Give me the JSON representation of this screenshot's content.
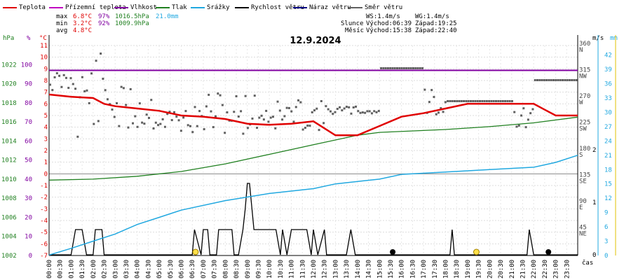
{
  "chart_data": {
    "type": "line",
    "title": "12.9.2024",
    "xlabel": "čas",
    "legend": [
      {
        "name": "Teplota",
        "color": "#e00000"
      },
      {
        "name": "Přízemní teplota",
        "color": "#c000c0"
      },
      {
        "name": "Vlhkost",
        "color": "#8000a0"
      },
      {
        "name": "Tlak",
        "color": "#208020"
      },
      {
        "name": "Srážky",
        "color": "#20a8e0"
      },
      {
        "name": "Rychlost větru",
        "color": "#000000"
      },
      {
        "name": "Náraz větru",
        "color": "#000080"
      },
      {
        "name": "Směr větru",
        "color": "#606060"
      }
    ],
    "stats": {
      "max": {
        "label": "max",
        "temp": "6.8°C",
        "hum": "97%",
        "press": "1016.5hPa",
        "rain": "21.0mm"
      },
      "min": {
        "label": "min",
        "temp": "3.2°C",
        "hum": "92%",
        "press": "1009.9hPa"
      },
      "avg": {
        "label": "avg",
        "temp": "4.8°C"
      }
    },
    "astro": {
      "ws": "WS:1.4m/s",
      "wg": "WG:1.4m/s",
      "sun_label": "Slunce",
      "sunrise": "Východ:06:39",
      "sunset": "Západ:19:25",
      "moon_label": "Měsíc",
      "moonrise": "Východ:15:38",
      "moonset": "Západ:22:40"
    },
    "axes": {
      "hpa": {
        "unit": "hPa",
        "range": [
          1002,
          1024
        ],
        "ticks": [
          "1022",
          "1020",
          "1018",
          "1016",
          "1014",
          "1012",
          "1010",
          "1008",
          "1006",
          "1004",
          "1002"
        ]
      },
      "pct": {
        "unit": "%",
        "range": [
          0,
          100
        ],
        "ticks": [
          "100",
          "90",
          "80",
          "70",
          "60",
          "50",
          "40",
          "30",
          "20",
          "10",
          "0"
        ]
      },
      "temp": {
        "unit": "°C",
        "range": [
          -7,
          11
        ],
        "ticks": [
          "11",
          "10",
          "9",
          "8",
          "7",
          "6",
          "5",
          "4",
          "3",
          "2",
          "1",
          "0",
          "-1",
          "-2",
          "-3",
          "-4",
          "-5",
          "-6",
          "-7"
        ]
      },
      "dir": {
        "ticks": [
          {
            "deg": "360",
            "card": "N"
          },
          {
            "deg": "315",
            "card": "NW"
          },
          {
            "deg": "270",
            "card": "W"
          },
          {
            "deg": "225",
            "card": "SW"
          },
          {
            "deg": "180",
            "card": "S"
          },
          {
            "deg": "135",
            "card": "SE"
          },
          {
            "deg": "90",
            "card": "E"
          },
          {
            "deg": "45",
            "card": "NE"
          }
        ]
      },
      "ms": {
        "unit": "m/s",
        "ticks": [
          "2",
          "1",
          "0"
        ]
      },
      "rain": {
        "unit": "mm",
        "range": [
          0,
          44
        ],
        "ticks": [
          "42",
          "39",
          "36",
          "33",
          "30",
          "27",
          "24",
          "21",
          "18",
          "15",
          "12",
          "9",
          "6",
          "3",
          "0"
        ]
      },
      "time_labels": [
        "00:00",
        "00:30",
        "01:00",
        "01:30",
        "02:00",
        "02:30",
        "03:00",
        "03:30",
        "04:00",
        "04:30",
        "05:00",
        "05:30",
        "06:00",
        "06:30",
        "07:00",
        "07:30",
        "08:00",
        "08:30",
        "09:00",
        "09:30",
        "10:00",
        "10:30",
        "11:00",
        "11:30",
        "12:00",
        "12:30",
        "13:00",
        "13:30",
        "14:00",
        "14:30",
        "15:00",
        "15:30",
        "16:00",
        "16:30",
        "17:00",
        "17:30",
        "18:00",
        "18:30",
        "19:00",
        "19:30",
        "20:00",
        "20:30",
        "21:00",
        "21:30",
        "22:00",
        "22:30",
        "23:00",
        "23:30"
      ]
    },
    "series": [
      {
        "name": "Teplota",
        "unit": "°C",
        "x": [
          0,
          1,
          2,
          2.5,
          3,
          4,
          5,
          6,
          7,
          8,
          9,
          10,
          11,
          12,
          13,
          14,
          15,
          16,
          17,
          18,
          19,
          20,
          21,
          22,
          22.5,
          23,
          24
        ],
        "values": [
          6.8,
          6.6,
          6.5,
          6.0,
          5.8,
          5.6,
          5.4,
          5.0,
          4.9,
          4.7,
          4.3,
          4.2,
          4.3,
          4.5,
          3.3,
          3.3,
          4.1,
          4.9,
          5.2,
          5.6,
          6.0,
          6.0,
          6.0,
          6.0,
          5.5,
          5.0,
          5.0
        ]
      },
      {
        "name": "Vlhkost",
        "unit": "%",
        "x": [
          0,
          1,
          10,
          24
        ],
        "values": [
          97,
          97,
          97,
          97
        ]
      },
      {
        "name": "Tlak",
        "unit": "hPa",
        "x": [
          0,
          2,
          4,
          6,
          8,
          10,
          12,
          14,
          15,
          18,
          20,
          22,
          24
        ],
        "values": [
          1009.9,
          1010.0,
          1010.3,
          1010.8,
          1011.6,
          1012.6,
          1013.6,
          1014.6,
          1014.9,
          1015.2,
          1015.5,
          1015.9,
          1016.5
        ]
      },
      {
        "name": "Srážky",
        "unit": "mm",
        "x": [
          0,
          1,
          2,
          3,
          4,
          5,
          6,
          8,
          10,
          12,
          13,
          14,
          15,
          16,
          18,
          20,
          22,
          23,
          24
        ],
        "values": [
          0.1,
          1.5,
          3.0,
          4.5,
          6.5,
          8.0,
          9.5,
          11.5,
          13.0,
          14.0,
          15.0,
          15.5,
          16.0,
          17.0,
          17.5,
          18.0,
          18.5,
          19.5,
          21.0
        ]
      }
    ]
  }
}
